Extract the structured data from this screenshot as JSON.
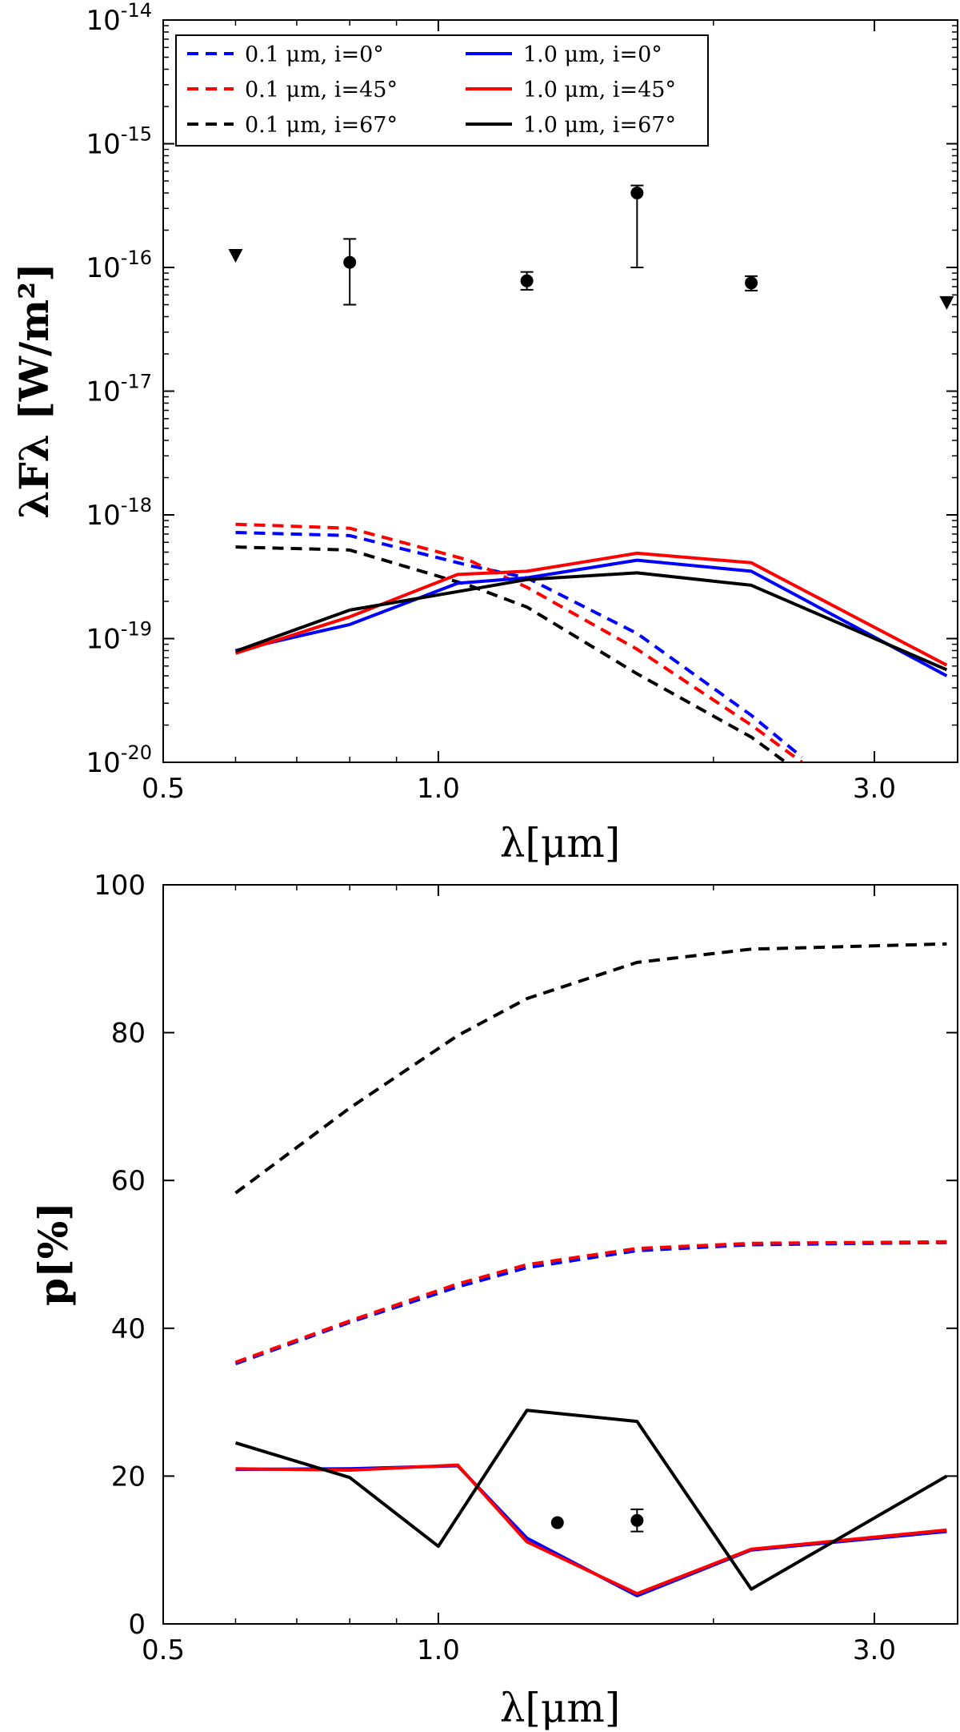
{
  "colors": {
    "blue": "#0000ff",
    "red": "#ff0000",
    "black": "#000000"
  },
  "legend": [
    {
      "label": "0.1 μm, i=0°",
      "color": "#0000ff",
      "dash": true
    },
    {
      "label": "0.1 μm, i=45°",
      "color": "#ff0000",
      "dash": true
    },
    {
      "label": "0.1 μm, i=67°",
      "color": "#000000",
      "dash": true
    },
    {
      "label": "1.0 μm, i=0°",
      "color": "#0000ff",
      "dash": false
    },
    {
      "label": "1.0 μm, i=45°",
      "color": "#ff0000",
      "dash": false
    },
    {
      "label": "1.0 μm, i=67°",
      "color": "#000000",
      "dash": false
    }
  ],
  "chart_data": [
    {
      "type": "line",
      "id": "sed",
      "xscale": "log",
      "yscale": "log",
      "xlim": [
        0.5,
        3.7
      ],
      "ylim_exp": [
        -20,
        -14
      ],
      "xticks": [
        {
          "value": 0.5,
          "label": "0.5"
        },
        {
          "value": 1.0,
          "label": "1.0"
        },
        {
          "value": 3.0,
          "label": "3.0"
        }
      ],
      "yticks": [
        {
          "exp": -20,
          "base": "10",
          "sup": "-20"
        },
        {
          "exp": -19,
          "base": "10",
          "sup": "-19"
        },
        {
          "exp": -18,
          "base": "10",
          "sup": "-18"
        },
        {
          "exp": -17,
          "base": "10",
          "sup": "-17"
        },
        {
          "exp": -16,
          "base": "10",
          "sup": "-16"
        },
        {
          "exp": -15,
          "base": "10",
          "sup": "-15"
        },
        {
          "exp": -14,
          "base": "10",
          "sup": "-14"
        }
      ],
      "xlabel": "λ[μm]",
      "ylabel": "λFλ [W/m²]",
      "series": [
        {
          "name": "0.1 μm, i=0°",
          "color": "#0000ff",
          "dash": true,
          "x": [
            0.6,
            0.8,
            1.08,
            1.25,
            1.65,
            2.2,
            2.5
          ],
          "y": [
            7.2e-19,
            6.8e-19,
            3.9e-19,
            3.1e-19,
            1.1e-19,
            2.4e-20,
            1.1e-20
          ]
        },
        {
          "name": "0.1 μm, i=45°",
          "color": "#ff0000",
          "dash": true,
          "x": [
            0.6,
            0.8,
            1.08,
            1.25,
            1.65,
            2.2,
            2.5
          ],
          "y": [
            8.4e-19,
            7.8e-19,
            4.3e-19,
            2.6e-19,
            8.2e-20,
            2e-20,
            1e-20
          ]
        },
        {
          "name": "0.1 μm, i=67°",
          "color": "#000000",
          "dash": true,
          "x": [
            0.6,
            0.8,
            1.08,
            1.25,
            1.65,
            2.2,
            2.4
          ],
          "y": [
            5.5e-19,
            5.2e-19,
            2.7e-19,
            1.8e-19,
            5.2e-20,
            1.6e-20,
            1e-20
          ]
        },
        {
          "name": "1.0 μm, i=0°",
          "color": "#0000ff",
          "dash": false,
          "x": [
            0.6,
            0.8,
            1.05,
            1.25,
            1.65,
            2.2,
            3.6
          ],
          "y": [
            8e-20,
            1.3e-19,
            2.8e-19,
            3.1e-19,
            4.3e-19,
            3.5e-19,
            5e-20
          ]
        },
        {
          "name": "1.0 μm, i=45°",
          "color": "#ff0000",
          "dash": false,
          "x": [
            0.6,
            0.8,
            1.05,
            1.25,
            1.65,
            2.2,
            3.6
          ],
          "y": [
            7.6e-20,
            1.5e-19,
            3.3e-19,
            3.5e-19,
            4.9e-19,
            4.1e-19,
            6.1e-20
          ]
        },
        {
          "name": "1.0 μm, i=67°",
          "color": "#000000",
          "dash": false,
          "x": [
            0.6,
            0.8,
            1.05,
            1.25,
            1.65,
            2.2,
            3.6
          ],
          "y": [
            7.9e-20,
            1.7e-19,
            2.4e-19,
            3e-19,
            3.4e-19,
            2.7e-19,
            5.6e-20
          ]
        }
      ],
      "observations": [
        {
          "x": 0.8,
          "y": 1.1e-16,
          "ylo": 5e-17,
          "yhi": 1.7e-16
        },
        {
          "x": 1.25,
          "y": 7.8e-17,
          "ylo": 6.6e-17,
          "yhi": 9.2e-17
        },
        {
          "x": 1.65,
          "y": 4e-16,
          "ylo": 1e-16,
          "yhi": 4.6e-16
        },
        {
          "x": 2.2,
          "y": 7.5e-17,
          "ylo": 6.5e-17,
          "yhi": 8.5e-17
        }
      ],
      "upper_limits": [
        {
          "x": 0.6,
          "y": 1.25e-16
        },
        {
          "x": 3.6,
          "y": 5.2e-17
        }
      ]
    },
    {
      "type": "line",
      "id": "polarization",
      "xscale": "log",
      "yscale": "linear",
      "xlim": [
        0.5,
        3.7
      ],
      "ylim": [
        0,
        100
      ],
      "xticks": [
        {
          "value": 0.5,
          "label": "0.5"
        },
        {
          "value": 1.0,
          "label": "1.0"
        },
        {
          "value": 3.0,
          "label": "3.0"
        }
      ],
      "yticks": [
        {
          "value": 0,
          "label": "0"
        },
        {
          "value": 20,
          "label": "20"
        },
        {
          "value": 40,
          "label": "40"
        },
        {
          "value": 60,
          "label": "60"
        },
        {
          "value": 80,
          "label": "80"
        },
        {
          "value": 100,
          "label": "100"
        }
      ],
      "xlabel": "λ[μm]",
      "ylabel": "p[%]",
      "series": [
        {
          "name": "0.1 μm, i=0°",
          "color": "#0000ff",
          "dash": true,
          "x": [
            0.6,
            0.8,
            1.05,
            1.25,
            1.65,
            2.2,
            3.6
          ],
          "y": [
            35.2,
            40.8,
            45.6,
            48.2,
            50.5,
            51.3,
            51.6
          ]
        },
        {
          "name": "0.1 μm, i=45°",
          "color": "#ff0000",
          "dash": true,
          "x": [
            0.6,
            0.8,
            1.05,
            1.25,
            1.65,
            2.2,
            3.6
          ],
          "y": [
            35.4,
            41.0,
            46.0,
            48.6,
            50.8,
            51.5,
            51.7
          ]
        },
        {
          "name": "0.1 μm, i=67°",
          "color": "#000000",
          "dash": true,
          "x": [
            0.6,
            0.8,
            1.05,
            1.25,
            1.65,
            2.2,
            3.6
          ],
          "y": [
            58.3,
            69.8,
            79.6,
            84.6,
            89.5,
            91.3,
            92.0
          ]
        },
        {
          "name": "1.0 μm, i=0°",
          "color": "#0000ff",
          "dash": false,
          "x": [
            0.6,
            0.8,
            1.05,
            1.25,
            1.65,
            2.2,
            3.6
          ],
          "y": [
            20.9,
            21.0,
            21.4,
            11.6,
            3.8,
            10.0,
            12.5
          ]
        },
        {
          "name": "1.0 μm, i=45°",
          "color": "#ff0000",
          "dash": false,
          "x": [
            0.6,
            0.8,
            1.05,
            1.25,
            1.65,
            2.2,
            3.6
          ],
          "y": [
            21.0,
            20.8,
            21.5,
            11.1,
            4.1,
            10.1,
            12.7
          ]
        },
        {
          "name": "1.0 μm, i=67°",
          "color": "#000000",
          "dash": false,
          "x": [
            0.6,
            0.8,
            1.0,
            1.25,
            1.65,
            2.2,
            3.6
          ],
          "y": [
            24.5,
            19.8,
            10.5,
            28.9,
            27.4,
            4.7,
            20.0
          ]
        }
      ],
      "observations": [
        {
          "x": 1.35,
          "y": 13.7,
          "ylo": 13.7,
          "yhi": 13.7
        },
        {
          "x": 1.65,
          "y": 14.0,
          "ylo": 12.5,
          "yhi": 15.5
        }
      ]
    }
  ]
}
